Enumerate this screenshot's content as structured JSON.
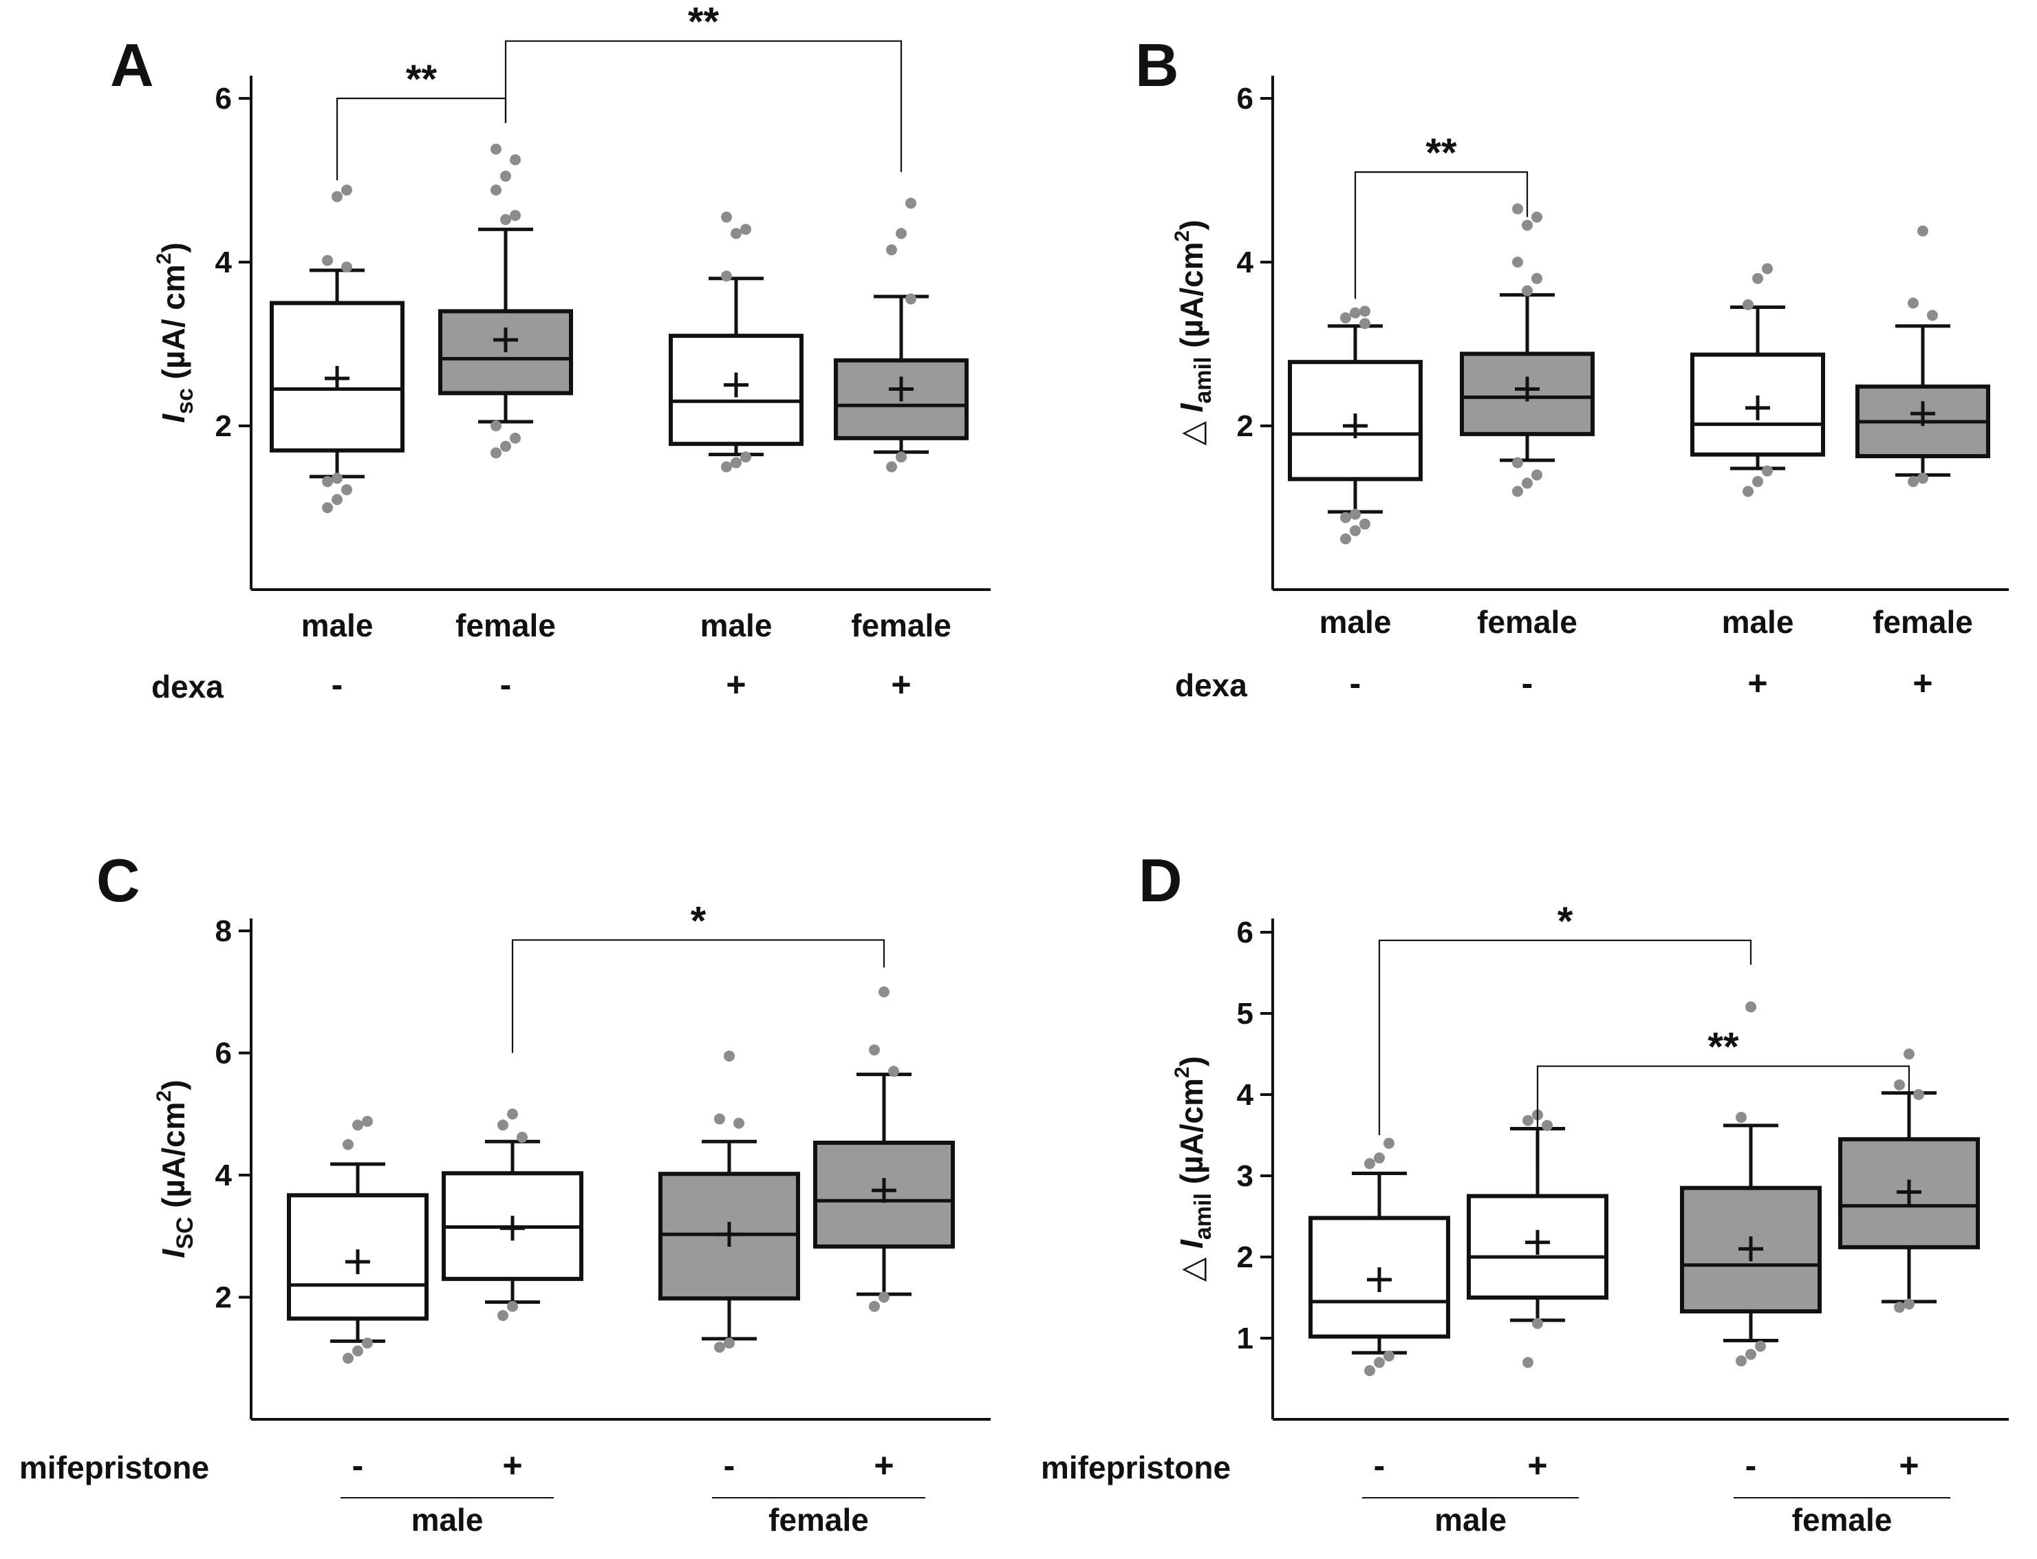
{
  "colors": {
    "box_white": "#ffffff",
    "box_gray": "#9a9a9a",
    "outlier": "#8c8c8c",
    "ink": "#111111"
  },
  "chart_data": [
    {
      "panel": "A",
      "type": "box",
      "ylabel": {
        "main": "I",
        "sub": "sc",
        "unit": " (µA/ cm",
        "sup": "2",
        "close": ")"
      },
      "ylim": [
        0,
        6
      ],
      "yticks": [
        2,
        4,
        6
      ],
      "row1_label": "dexa",
      "row1": [
        "-",
        "-",
        "+",
        "+"
      ],
      "row2_label": "",
      "groups": [],
      "categories": [
        "male",
        "female",
        "male",
        "female"
      ],
      "boxes": [
        {
          "fill": "white",
          "q1": 1.7,
          "median": 2.45,
          "q3": 3.5,
          "lo": 1.38,
          "hi": 3.9,
          "mean": 2.58,
          "outliers": [
            1.0,
            1.1,
            1.22,
            1.32,
            1.36,
            3.94,
            4.02,
            4.8,
            4.88
          ]
        },
        {
          "fill": "gray",
          "q1": 2.4,
          "median": 2.82,
          "q3": 3.4,
          "lo": 2.05,
          "hi": 4.4,
          "mean": 3.05,
          "outliers": [
            1.67,
            1.75,
            1.85,
            2.0,
            4.52,
            4.57,
            4.88,
            5.05,
            5.25,
            5.38
          ]
        },
        {
          "fill": "white",
          "q1": 1.78,
          "median": 2.3,
          "q3": 3.1,
          "lo": 1.65,
          "hi": 3.8,
          "mean": 2.5,
          "outliers": [
            1.5,
            1.55,
            1.62,
            3.83,
            4.35,
            4.4,
            4.55
          ]
        },
        {
          "fill": "gray",
          "q1": 1.85,
          "median": 2.25,
          "q3": 2.8,
          "lo": 1.68,
          "hi": 3.58,
          "mean": 2.45,
          "outliers": [
            1.5,
            1.62,
            3.55,
            4.15,
            4.35,
            4.72
          ]
        }
      ],
      "brackets": [
        {
          "from": 0,
          "to": 1,
          "y": 6.0,
          "left_end": 5.0,
          "right_end": 5.7,
          "label": "**"
        },
        {
          "from": 1,
          "to": 3,
          "y": 6.7,
          "left_end": 5.7,
          "right_end": 5.1,
          "label": "**"
        }
      ]
    },
    {
      "panel": "B",
      "type": "box",
      "ylabel": {
        "pre": "△",
        "main": "I",
        "sub": "amil",
        "unit": " (µA/cm",
        "sup": "2",
        "close": ")"
      },
      "ylim": [
        0,
        6
      ],
      "yticks": [
        2,
        4,
        6
      ],
      "row1_label": "dexa",
      "row1": [
        "-",
        "-",
        "+",
        "+"
      ],
      "row2_label": "",
      "groups": [],
      "categories": [
        "male",
        "female",
        "male",
        "female"
      ],
      "boxes": [
        {
          "fill": "white",
          "q1": 1.35,
          "median": 1.9,
          "q3": 2.78,
          "lo": 0.95,
          "hi": 3.22,
          "mean": 2.0,
          "outliers": [
            0.62,
            0.72,
            0.8,
            0.88,
            0.92,
            3.25,
            3.32,
            3.38,
            3.4
          ]
        },
        {
          "fill": "gray",
          "q1": 1.9,
          "median": 2.35,
          "q3": 2.88,
          "lo": 1.58,
          "hi": 3.6,
          "mean": 2.45,
          "outliers": [
            1.2,
            1.3,
            1.4,
            1.55,
            3.65,
            3.8,
            4.0,
            4.45,
            4.55,
            4.65
          ]
        },
        {
          "fill": "white",
          "q1": 1.65,
          "median": 2.02,
          "q3": 2.87,
          "lo": 1.48,
          "hi": 3.45,
          "mean": 2.22,
          "outliers": [
            1.2,
            1.32,
            1.45,
            3.48,
            3.8,
            3.92
          ]
        },
        {
          "fill": "gray",
          "q1": 1.63,
          "median": 2.05,
          "q3": 2.48,
          "lo": 1.4,
          "hi": 3.22,
          "mean": 2.15,
          "outliers": [
            1.32,
            1.36,
            3.35,
            3.5,
            4.38
          ]
        }
      ],
      "brackets": [
        {
          "from": 0,
          "to": 1,
          "y": 5.1,
          "left_end": 3.55,
          "right_end": 4.55,
          "label": "**"
        }
      ]
    },
    {
      "panel": "C",
      "type": "box",
      "ylabel": {
        "main": "I",
        "sub": "SC",
        "unit": " (µA/cm",
        "sup": "2",
        "close": ")"
      },
      "ylim": [
        0,
        8
      ],
      "yticks": [
        2,
        4,
        6,
        8
      ],
      "row1_label": "mifepristone",
      "row1": [
        "-",
        "+",
        "-",
        "+"
      ],
      "row2_label": "",
      "groups": [
        {
          "label": "male",
          "from": 0,
          "to": 1
        },
        {
          "label": "female",
          "from": 2,
          "to": 3
        }
      ],
      "categories": [],
      "boxes": [
        {
          "fill": "white",
          "q1": 1.65,
          "median": 2.2,
          "q3": 3.67,
          "lo": 1.28,
          "hi": 4.18,
          "mean": 2.58,
          "outliers": [
            1.0,
            1.12,
            1.25,
            4.5,
            4.82,
            4.88
          ]
        },
        {
          "fill": "white",
          "q1": 2.3,
          "median": 3.15,
          "q3": 4.03,
          "lo": 1.92,
          "hi": 4.55,
          "mean": 3.13,
          "outliers": [
            1.7,
            1.85,
            4.62,
            4.82,
            5.0
          ]
        },
        {
          "fill": "gray",
          "q1": 1.98,
          "median": 3.03,
          "q3": 4.02,
          "lo": 1.32,
          "hi": 4.55,
          "mean": 3.03,
          "outliers": [
            1.18,
            1.25,
            4.85,
            4.92,
            5.95
          ]
        },
        {
          "fill": "gray",
          "q1": 2.83,
          "median": 3.58,
          "q3": 4.53,
          "lo": 2.05,
          "hi": 5.65,
          "mean": 3.75,
          "outliers": [
            1.85,
            2.0,
            5.7,
            6.05,
            7.0
          ]
        }
      ],
      "brackets": [
        {
          "from": 1,
          "to": 3,
          "y": 7.85,
          "left_end": 6.0,
          "right_end": 7.4,
          "label": "*"
        }
      ]
    },
    {
      "panel": "D",
      "type": "box",
      "ylabel": {
        "pre": "△",
        "main": "I",
        "sub": "amil",
        "unit": " (µA/cm",
        "sup": "2",
        "close": ")"
      },
      "ylim": [
        0,
        6
      ],
      "yticks": [
        1,
        2,
        3,
        4,
        5,
        6
      ],
      "row1_label": "mifepristone",
      "row1": [
        "-",
        "+",
        "-",
        "+"
      ],
      "row2_label": "",
      "groups": [
        {
          "label": "male",
          "from": 0,
          "to": 1
        },
        {
          "label": "female",
          "from": 2,
          "to": 3
        }
      ],
      "categories": [],
      "boxes": [
        {
          "fill": "white",
          "q1": 1.02,
          "median": 1.45,
          "q3": 2.48,
          "lo": 0.82,
          "hi": 3.03,
          "mean": 1.72,
          "outliers": [
            0.6,
            0.7,
            0.78,
            3.15,
            3.22,
            3.4
          ]
        },
        {
          "fill": "white",
          "q1": 1.5,
          "median": 2.0,
          "q3": 2.75,
          "lo": 1.22,
          "hi": 3.58,
          "mean": 2.18,
          "outliers": [
            0.7,
            1.18,
            3.62,
            3.68,
            3.75
          ]
        },
        {
          "fill": "gray",
          "q1": 1.33,
          "median": 1.9,
          "q3": 2.85,
          "lo": 0.97,
          "hi": 3.62,
          "mean": 2.1,
          "outliers": [
            0.72,
            0.8,
            0.9,
            3.72,
            5.08
          ]
        },
        {
          "fill": "gray",
          "q1": 2.12,
          "median": 2.63,
          "q3": 3.45,
          "lo": 1.45,
          "hi": 4.02,
          "mean": 2.8,
          "outliers": [
            1.38,
            1.42,
            4.0,
            4.12,
            4.5
          ]
        }
      ],
      "brackets": [
        {
          "from": 0,
          "to": 2,
          "y": 5.9,
          "left_end": 3.5,
          "right_end": 5.6,
          "label": "*"
        },
        {
          "from": 1,
          "to": 3,
          "y": 4.35,
          "left_end": 3.1,
          "right_end": 3.85,
          "label": "**"
        }
      ]
    }
  ]
}
